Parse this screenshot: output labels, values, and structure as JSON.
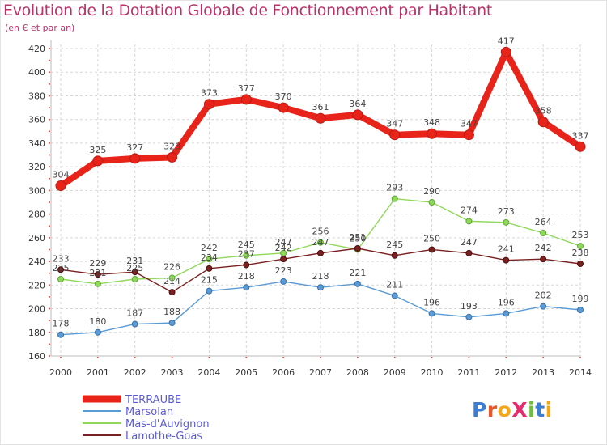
{
  "header": {
    "title": "Evolution de la Dotation Globale de Fonctionnement par Habitant",
    "subtitle": "(en € et par an)"
  },
  "logo": {
    "text": "ProXiti",
    "letters": [
      "P",
      "r",
      "o",
      "X",
      "i",
      "t",
      "i"
    ],
    "colors": [
      "#3a7fd4",
      "#e8562a",
      "#f2a71b",
      "#e82a6e",
      "#6cbf3a",
      "#3a7fd4",
      "#f2a71b"
    ]
  },
  "chart_data": {
    "type": "line",
    "x": [
      "2000",
      "2001",
      "2002",
      "2003",
      "2004",
      "2005",
      "2006",
      "2007",
      "2008",
      "2009",
      "2010",
      "2011",
      "2012",
      "2013",
      "2014"
    ],
    "ylim": [
      160,
      420
    ],
    "yticks": [
      160,
      180,
      200,
      220,
      240,
      260,
      280,
      300,
      320,
      340,
      360,
      380,
      400,
      420
    ],
    "grid": true,
    "legend": "bottom-left",
    "series": [
      {
        "name": "TERRAUBE",
        "color": "#e8231a",
        "values": [
          304,
          325,
          327,
          328,
          373,
          377,
          370,
          361,
          364,
          347,
          348,
          347,
          417,
          358,
          337
        ]
      },
      {
        "name": "Marsolan",
        "color": "#5b9bd5",
        "values": [
          178,
          180,
          187,
          188,
          215,
          218,
          223,
          218,
          221,
          211,
          196,
          193,
          196,
          202,
          199
        ]
      },
      {
        "name": "Mas-d'Auvignon",
        "color": "#8fd85a",
        "values": [
          225,
          221,
          225,
          226,
          242,
          245,
          247,
          256,
          250,
          293,
          290,
          274,
          273,
          264,
          253
        ]
      },
      {
        "name": "Lamothe-Goas",
        "color": "#7a2020",
        "values": [
          233,
          229,
          231,
          214,
          234,
          237,
          242,
          247,
          251,
          245,
          250,
          247,
          241,
          242,
          238
        ]
      }
    ]
  }
}
